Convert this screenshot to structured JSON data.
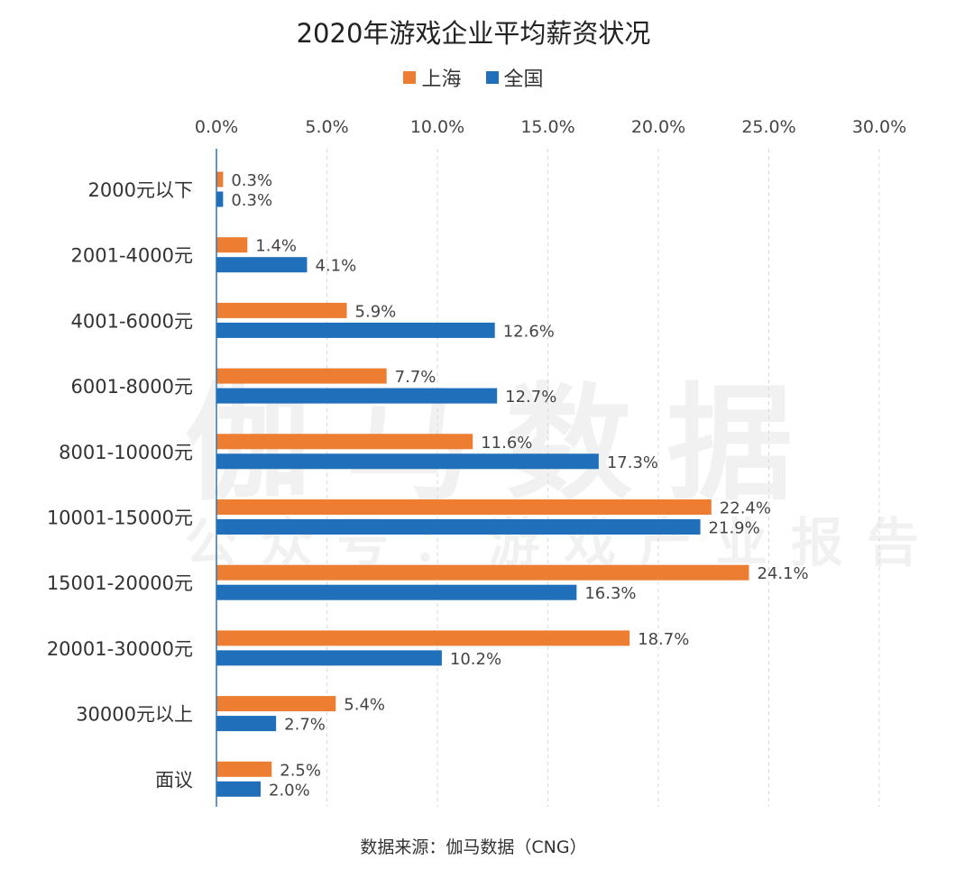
{
  "chart_data": {
    "type": "bar",
    "orientation": "horizontal",
    "title": "2020年游戏企业平均薪资状况",
    "categories": [
      "2000元以下",
      "2001-4000元",
      "4001-6000元",
      "6001-8000元",
      "8001-10000元",
      "10001-15000元",
      "15001-20000元",
      "20001-30000元",
      "30000元以上",
      "面议"
    ],
    "series": [
      {
        "name": "上海",
        "color": "#ed7d31",
        "values": [
          0.3,
          1.4,
          5.9,
          7.7,
          11.6,
          22.4,
          24.1,
          18.7,
          5.4,
          2.5
        ]
      },
      {
        "name": "全国",
        "color": "#1f6fba",
        "values": [
          0.3,
          4.1,
          12.6,
          12.7,
          17.3,
          21.9,
          16.3,
          10.2,
          2.7,
          2.0
        ]
      }
    ],
    "xlim": [
      0,
      30
    ],
    "xticks": [
      0,
      5,
      10,
      15,
      20,
      25,
      30
    ],
    "xtick_labels": [
      "0.0%",
      "5.0%",
      "10.0%",
      "15.0%",
      "20.0%",
      "25.0%",
      "30.0%"
    ],
    "axis_position": "top",
    "grid": "vertical dashed",
    "legend_position": "top-center"
  },
  "source": "数据来源：伽马数据（CNG）",
  "watermark": {
    "main": "伽马数据",
    "sub": "公众号：游戏产业报告"
  }
}
